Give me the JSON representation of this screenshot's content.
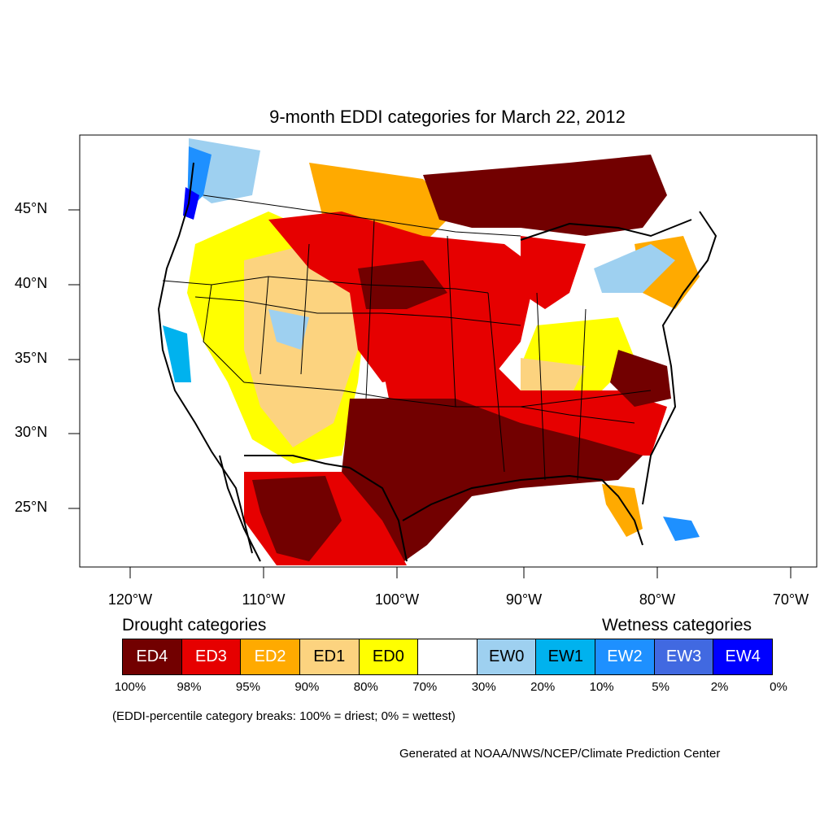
{
  "title": "9-month EDDI categories for March 22, 2012",
  "lat_labels": [
    "45°N",
    "40°N",
    "35°N",
    "30°N",
    "25°N"
  ],
  "lon_labels": [
    "120°W",
    "110°W",
    "100°W",
    "90°W",
    "80°W",
    "70°W"
  ],
  "legend": {
    "drought_heading": "Drought categories",
    "wetness_heading": "Wetness categories",
    "categories": [
      {
        "label": "ED4",
        "color": "#720000",
        "text_color": "#ffffff"
      },
      {
        "label": "ED3",
        "color": "#e60000",
        "text_color": "#ffffff"
      },
      {
        "label": "ED2",
        "color": "#ffaa00",
        "text_color": "#ffffff"
      },
      {
        "label": "ED1",
        "color": "#fcd37f",
        "text_color": "#000000"
      },
      {
        "label": "ED0",
        "color": "#ffff00",
        "text_color": "#000000"
      },
      {
        "label": "",
        "color": "#ffffff",
        "text_color": "#000000"
      },
      {
        "label": "EW0",
        "color": "#9ed0f0",
        "text_color": "#000000"
      },
      {
        "label": "EW1",
        "color": "#00b2ee",
        "text_color": "#000000"
      },
      {
        "label": "EW2",
        "color": "#1e90ff",
        "text_color": "#ffffff"
      },
      {
        "label": "EW3",
        "color": "#4169e1",
        "text_color": "#ffffff"
      },
      {
        "label": "EW4",
        "color": "#0000ff",
        "text_color": "#ffffff"
      }
    ],
    "breaks": [
      "100%",
      "98%",
      "95%",
      "90%",
      "80%",
      "70%",
      "30%",
      "20%",
      "10%",
      "5%",
      "2%",
      "0%"
    ]
  },
  "note": "(EDDI-percentile category breaks: 100% = driest; 0% = wettest)",
  "credit": "Generated at NOAA/NWS/NCEP/Climate Prediction Center"
}
